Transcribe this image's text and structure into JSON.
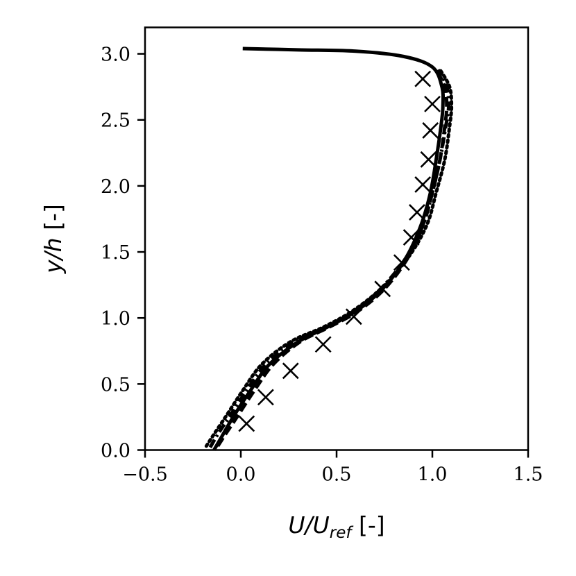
{
  "chart_data": {
    "type": "line",
    "xlabel": {
      "main": "U/U",
      "sub": "ref",
      "unit": " [-]"
    },
    "ylabel": {
      "main": "y/h",
      "unit": " [-]"
    },
    "xlim": [
      -0.5,
      1.5
    ],
    "ylim": [
      0.0,
      3.2
    ],
    "xticks": [
      -0.5,
      0.0,
      0.5,
      1.0,
      1.5
    ],
    "xtick_labels": [
      "−0.5",
      "0.0",
      "0.5",
      "1.0",
      "1.5"
    ],
    "yticks": [
      0.0,
      0.5,
      1.0,
      1.5,
      2.0,
      2.5,
      3.0
    ],
    "ytick_labels": [
      "0.0",
      "0.5",
      "1.0",
      "1.5",
      "2.0",
      "2.5",
      "3.0"
    ],
    "grid": false,
    "legend": "none",
    "color": "#000000",
    "series": [
      {
        "style": "solid",
        "points": [
          [
            -0.14,
            0.0
          ],
          [
            -0.1,
            0.1
          ],
          [
            -0.04,
            0.25
          ],
          [
            0.05,
            0.45
          ],
          [
            0.15,
            0.65
          ],
          [
            0.3,
            0.82
          ],
          [
            0.45,
            0.93
          ],
          [
            0.6,
            1.05
          ],
          [
            0.74,
            1.22
          ],
          [
            0.86,
            1.45
          ],
          [
            0.94,
            1.7
          ],
          [
            0.99,
            1.95
          ],
          [
            1.02,
            2.2
          ],
          [
            1.045,
            2.45
          ],
          [
            1.055,
            2.6
          ],
          [
            1.05,
            2.75
          ],
          [
            1.0,
            2.9
          ],
          [
            0.85,
            2.98
          ],
          [
            0.6,
            3.02
          ],
          [
            0.3,
            3.03
          ],
          [
            0.01,
            3.04
          ]
        ]
      },
      {
        "style": "dashed",
        "points": [
          [
            -0.12,
            0.03
          ],
          [
            -0.08,
            0.12
          ],
          [
            -0.02,
            0.25
          ],
          [
            0.07,
            0.45
          ],
          [
            0.17,
            0.65
          ],
          [
            0.31,
            0.82
          ],
          [
            0.46,
            0.93
          ],
          [
            0.61,
            1.05
          ],
          [
            0.75,
            1.22
          ],
          [
            0.87,
            1.45
          ],
          [
            0.95,
            1.7
          ],
          [
            1.0,
            1.95
          ],
          [
            1.04,
            2.2
          ],
          [
            1.065,
            2.45
          ],
          [
            1.075,
            2.6
          ],
          [
            1.065,
            2.75
          ],
          [
            1.02,
            2.88
          ]
        ]
      },
      {
        "style": "dash-dot",
        "points": [
          [
            -0.16,
            0.02
          ],
          [
            -0.12,
            0.12
          ],
          [
            -0.06,
            0.25
          ],
          [
            0.03,
            0.45
          ],
          [
            0.13,
            0.65
          ],
          [
            0.28,
            0.82
          ],
          [
            0.44,
            0.93
          ],
          [
            0.59,
            1.05
          ],
          [
            0.73,
            1.22
          ],
          [
            0.86,
            1.45
          ],
          [
            0.95,
            1.7
          ],
          [
            1.0,
            1.95
          ],
          [
            1.04,
            2.2
          ],
          [
            1.07,
            2.45
          ],
          [
            1.085,
            2.6
          ],
          [
            1.075,
            2.75
          ],
          [
            1.03,
            2.88
          ]
        ]
      },
      {
        "style": "dotted",
        "points": [
          [
            -0.18,
            0.03
          ],
          [
            -0.14,
            0.12
          ],
          [
            -0.08,
            0.25
          ],
          [
            0.01,
            0.45
          ],
          [
            0.11,
            0.65
          ],
          [
            0.26,
            0.82
          ],
          [
            0.43,
            0.93
          ],
          [
            0.58,
            1.05
          ],
          [
            0.73,
            1.22
          ],
          [
            0.87,
            1.45
          ],
          [
            0.97,
            1.7
          ],
          [
            1.02,
            1.95
          ],
          [
            1.065,
            2.2
          ],
          [
            1.09,
            2.45
          ],
          [
            1.1,
            2.6
          ],
          [
            1.09,
            2.75
          ],
          [
            1.04,
            2.88
          ]
        ]
      },
      {
        "style": "markers",
        "marker": "x",
        "points": [
          [
            0.03,
            0.2
          ],
          [
            0.13,
            0.4
          ],
          [
            0.26,
            0.6
          ],
          [
            0.43,
            0.8
          ],
          [
            0.59,
            1.01
          ],
          [
            0.74,
            1.22
          ],
          [
            0.84,
            1.42
          ],
          [
            0.89,
            1.61
          ],
          [
            0.92,
            1.8
          ],
          [
            0.95,
            2.01
          ],
          [
            0.98,
            2.2
          ],
          [
            0.99,
            2.42
          ],
          [
            1.0,
            2.62
          ],
          [
            0.95,
            2.81
          ]
        ]
      }
    ]
  }
}
